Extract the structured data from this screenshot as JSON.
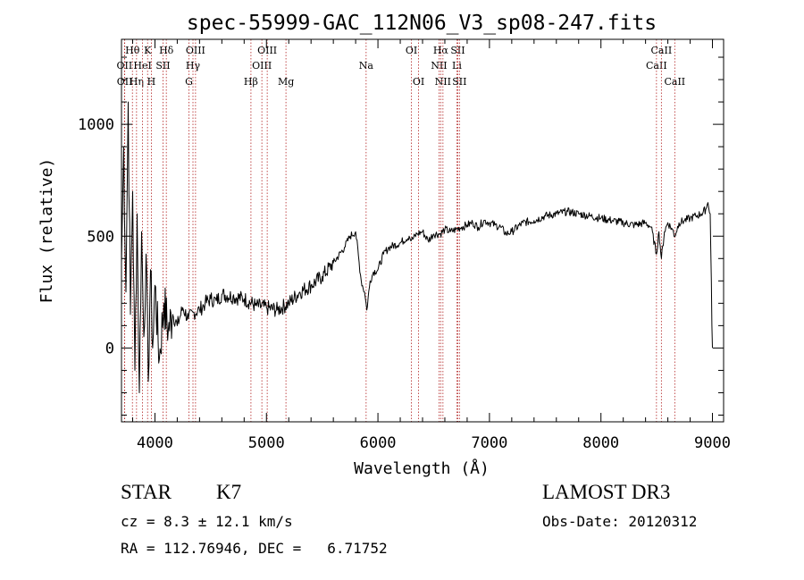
{
  "colors": {
    "background": "#ffffff",
    "spectrum": "#000000",
    "line_markers": "#b22222",
    "text": "#000000"
  },
  "chart_data": {
    "type": "line",
    "title": "spec-55999-GAC_112N06_V3_sp08-247.fits",
    "xlabel": "Wavelength (Å)",
    "ylabel": "Flux (relative)",
    "xlim": [
      3700,
      9100
    ],
    "ylim": [
      -330,
      1380
    ],
    "x_ticks": [
      4000,
      5000,
      6000,
      7000,
      8000,
      9000
    ],
    "x_tick_labels": [
      "4000",
      "5000",
      "6000",
      "7000",
      "8000",
      "9000"
    ],
    "y_ticks": [
      0,
      500,
      1000
    ],
    "y_tick_labels": [
      "0",
      "500",
      "1000"
    ],
    "grid": false,
    "series": [
      {
        "name": "spectrum",
        "x": [
          3700,
          3720,
          3740,
          3760,
          3780,
          3800,
          3820,
          3840,
          3860,
          3880,
          3900,
          3920,
          3940,
          3960,
          3980,
          4000,
          4040,
          4080,
          4120,
          4160,
          4200,
          4250,
          4300,
          4350,
          4400,
          4450,
          4500,
          4550,
          4600,
          4700,
          4800,
          4900,
          5000,
          5100,
          5200,
          5300,
          5400,
          5500,
          5600,
          5700,
          5750,
          5800,
          5850,
          5880,
          5900,
          5930,
          5960,
          6000,
          6050,
          6100,
          6200,
          6280,
          6300,
          6350,
          6400,
          6450,
          6500,
          6560,
          6600,
          6650,
          6700,
          6750,
          6800,
          6850,
          6900,
          6950,
          7000,
          7050,
          7100,
          7150,
          7200,
          7300,
          7400,
          7500,
          7600,
          7700,
          7800,
          7900,
          8000,
          8100,
          8200,
          8300,
          8400,
          8450,
          8498,
          8520,
          8542,
          8570,
          8600,
          8640,
          8662,
          8700,
          8750,
          8800,
          8850,
          8900,
          8940,
          8960,
          8980,
          8990,
          8995,
          9000
        ],
        "y": [
          380,
          900,
          250,
          1100,
          150,
          700,
          -100,
          600,
          -200,
          520,
          50,
          420,
          -150,
          350,
          0,
          280,
          -50,
          200,
          80,
          150,
          100,
          180,
          130,
          160,
          170,
          200,
          220,
          210,
          240,
          230,
          220,
          190,
          180,
          170,
          200,
          250,
          280,
          320,
          380,
          450,
          500,
          520,
          300,
          250,
          170,
          300,
          340,
          350,
          420,
          450,
          470,
          500,
          480,
          510,
          520,
          480,
          510,
          510,
          530,
          520,
          530,
          540,
          550,
          560,
          540,
          570,
          560,
          550,
          540,
          510,
          520,
          560,
          570,
          590,
          600,
          610,
          600,
          590,
          580,
          570,
          560,
          550,
          560,
          540,
          420,
          520,
          400,
          520,
          560,
          530,
          500,
          560,
          570,
          580,
          590,
          600,
          620,
          650,
          600,
          300,
          100,
          0
        ]
      }
    ],
    "spectral_lines": [
      {
        "label": "OII",
        "wavelength": 3727,
        "row": 2
      },
      {
        "label": "OII",
        "wavelength": 3729,
        "row": 3
      },
      {
        "label": "Hθ",
        "wavelength": 3798,
        "row": 1
      },
      {
        "label": "Hη",
        "wavelength": 3835,
        "row": 3
      },
      {
        "label": "HeI",
        "wavelength": 3889,
        "row": 2
      },
      {
        "label": "K",
        "wavelength": 3934,
        "row": 1
      },
      {
        "label": "H",
        "wavelength": 3968,
        "row": 3
      },
      {
        "label": "SII",
        "wavelength": 4072,
        "row": 2
      },
      {
        "label": "Hδ",
        "wavelength": 4102,
        "row": 1
      },
      {
        "label": "G",
        "wavelength": 4305,
        "row": 3
      },
      {
        "label": "Hγ",
        "wavelength": 4341,
        "row": 2
      },
      {
        "label": "OIII",
        "wavelength": 4364,
        "row": 1
      },
      {
        "label": "Hβ",
        "wavelength": 4861,
        "row": 3
      },
      {
        "label": "OIII",
        "wavelength": 4959,
        "row": 2
      },
      {
        "label": "OIII",
        "wavelength": 5007,
        "row": 1
      },
      {
        "label": "Mg",
        "wavelength": 5175,
        "row": 3
      },
      {
        "label": "Na",
        "wavelength": 5894,
        "row": 2
      },
      {
        "label": "OI",
        "wavelength": 6300,
        "row": 1
      },
      {
        "label": "OI",
        "wavelength": 6364,
        "row": 3
      },
      {
        "label": "NII",
        "wavelength": 6548,
        "row": 2
      },
      {
        "label": "Hα",
        "wavelength": 6563,
        "row": 1
      },
      {
        "label": "NII",
        "wavelength": 6583,
        "row": 3
      },
      {
        "label": "Li",
        "wavelength": 6708,
        "row": 2
      },
      {
        "label": "SII",
        "wavelength": 6716,
        "row": 1
      },
      {
        "label": "SII",
        "wavelength": 6731,
        "row": 3
      },
      {
        "label": "CaII",
        "wavelength": 8498,
        "row": 2
      },
      {
        "label": "CaII",
        "wavelength": 8542,
        "row": 1
      },
      {
        "label": "CaII",
        "wavelength": 8662,
        "row": 3
      }
    ]
  },
  "info": {
    "object_class": "STAR",
    "subclass": "K7",
    "survey": "LAMOST DR3",
    "redshift": "cz = 8.3 ± 12.1 km/s",
    "obs_date": "Obs-Date: 20120312",
    "coords": "RA = 112.76946, DEC =   6.71752"
  }
}
